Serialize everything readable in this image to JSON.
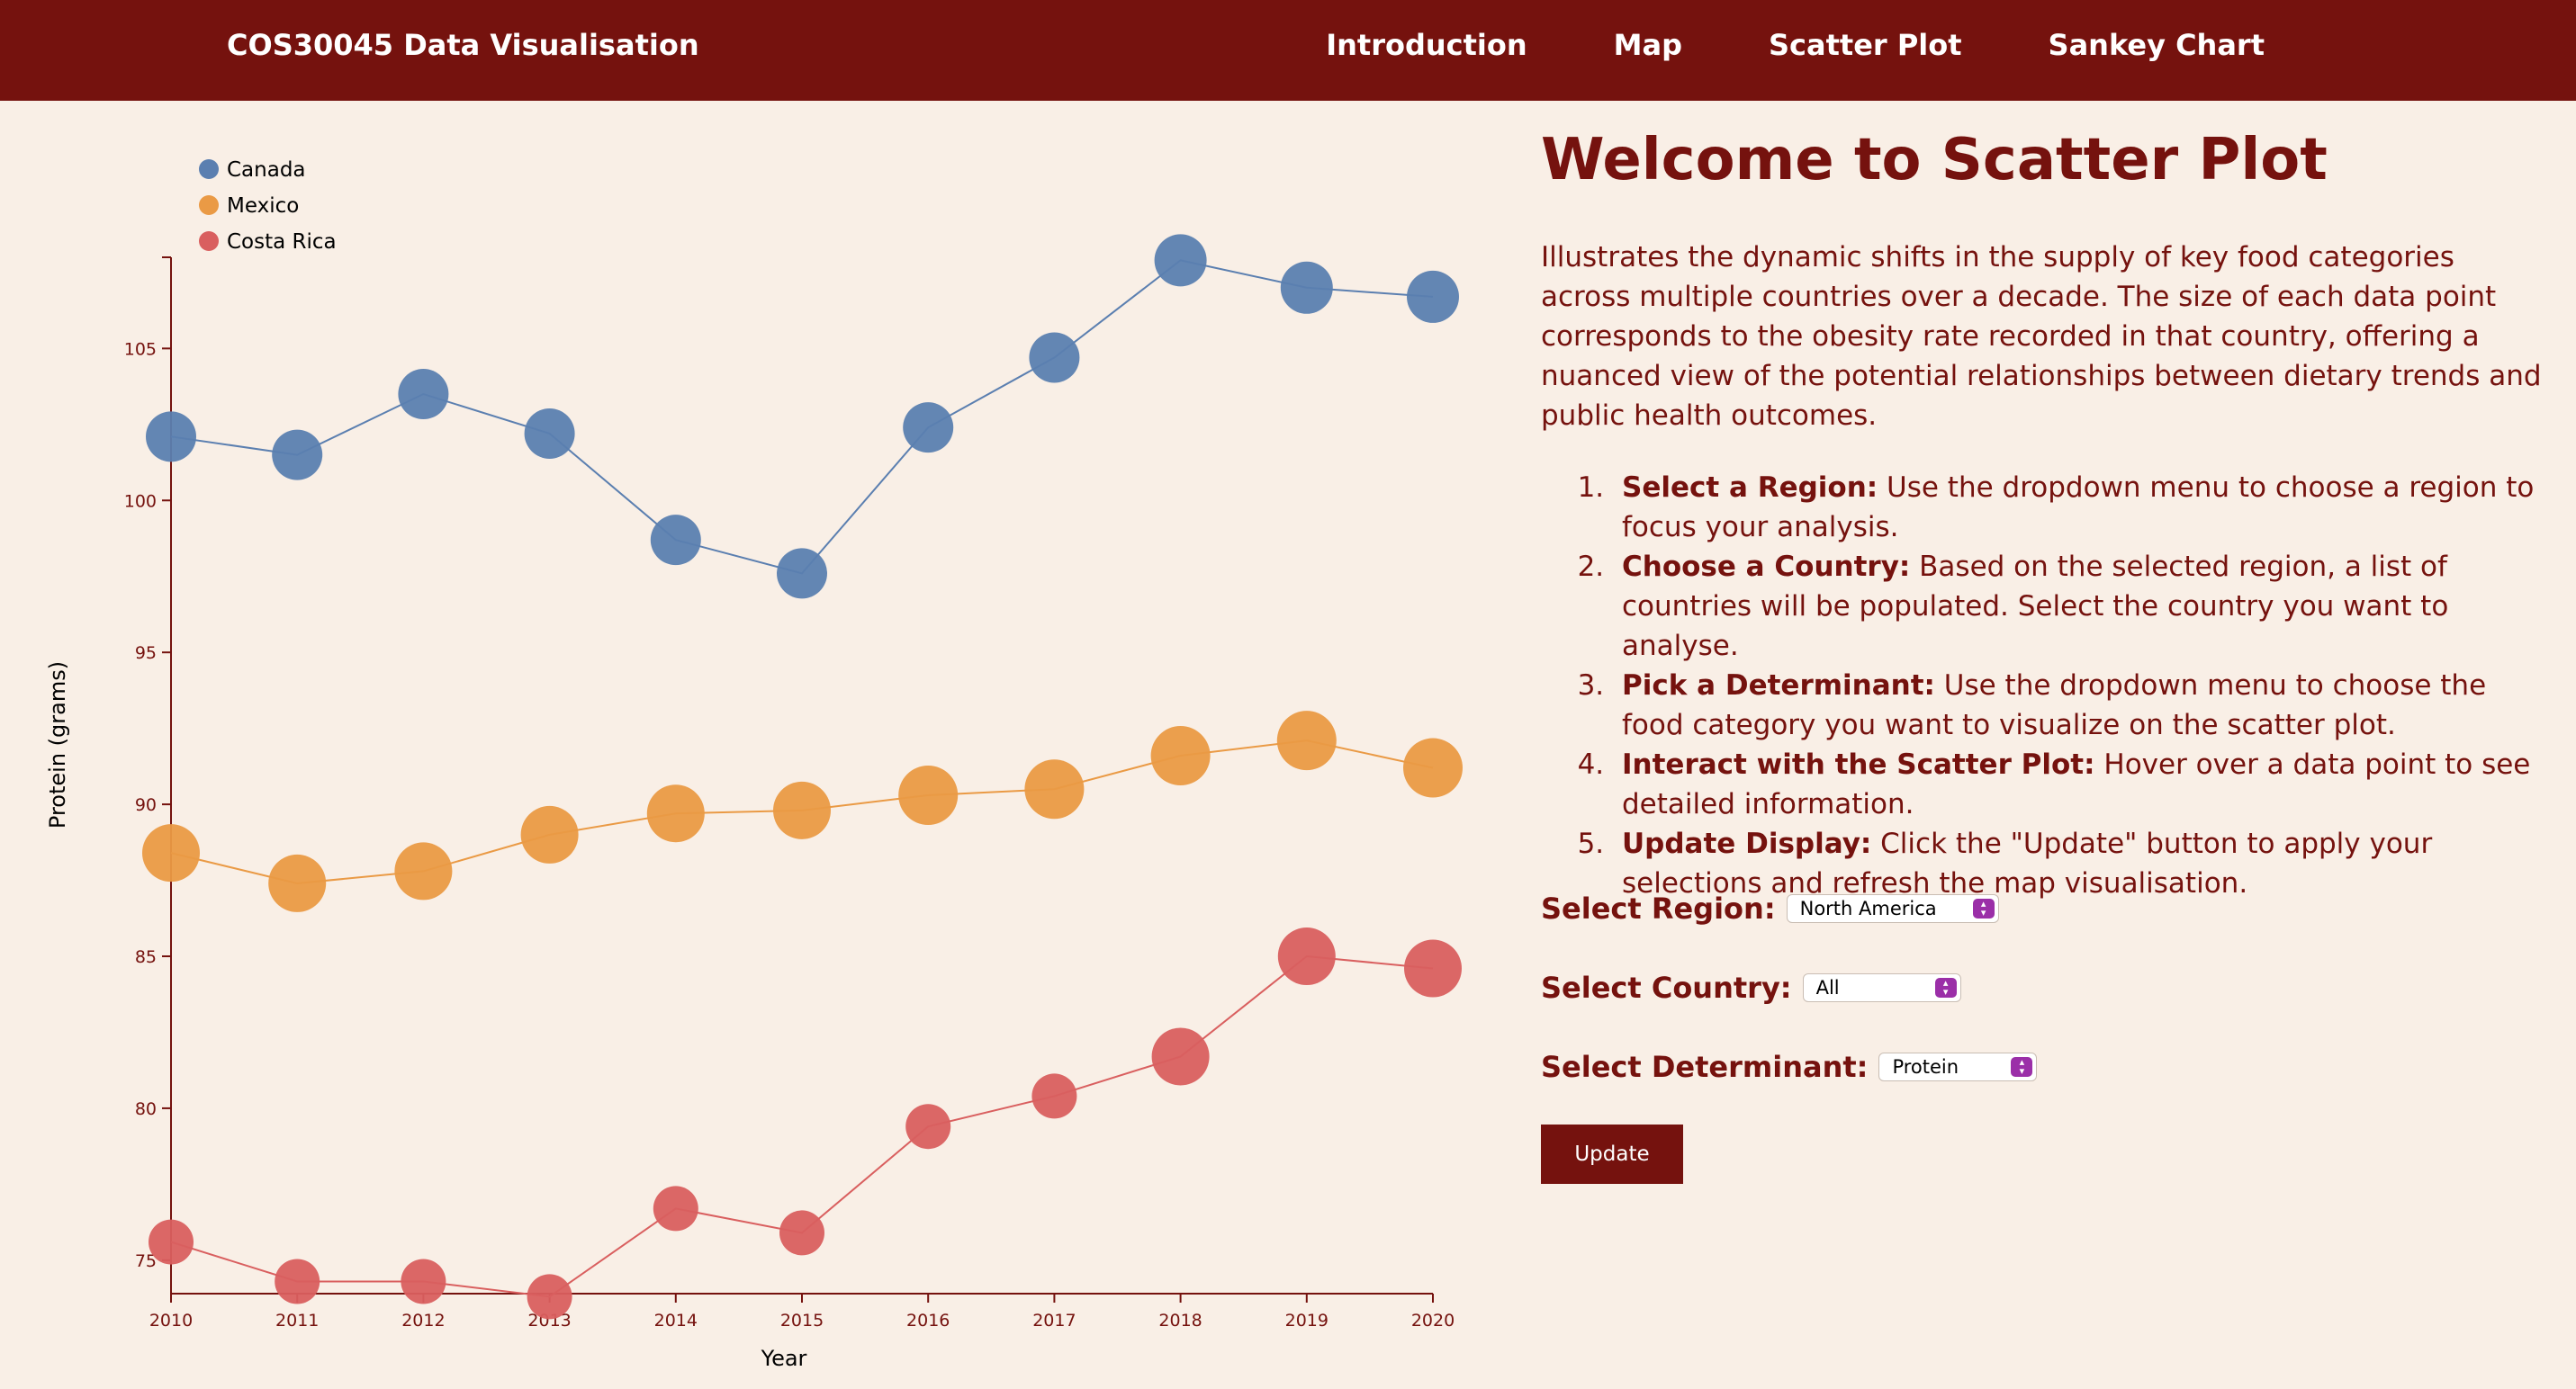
{
  "nav": {
    "brand": "COS30045 Data Visualisation",
    "links": [
      "Introduction",
      "Map",
      "Scatter Plot",
      "Sankey Chart"
    ]
  },
  "main": {
    "title": "Welcome to Scatter Plot",
    "intro": "Illustrates the dynamic shifts in the supply of key food categories across multiple countries over a decade. The size of each data point corresponds to the obesity rate recorded in that country, offering a nuanced view of the potential relationships between dietary trends and public health outcomes.",
    "steps": [
      {
        "bold": "Select a Region:",
        "text": " Use the dropdown menu to choose a region to focus your analysis."
      },
      {
        "bold": "Choose a Country:",
        "text": " Based on the selected region, a list of countries will be populated. Select the country you want to analyse."
      },
      {
        "bold": "Pick a Determinant:",
        "text": " Use the dropdown menu to choose the food category you want to visualize on the scatter plot."
      },
      {
        "bold": "Interact with the Scatter Plot:",
        "text": " Hover over a data point to see detailed information."
      },
      {
        "bold": "Update Display:",
        "text": " Click the \"Update\" button to apply your selections and refresh the map visualisation."
      }
    ]
  },
  "controls": {
    "region_label": "Select Region:",
    "region_value": "North America",
    "country_label": "Select Country:",
    "country_value": "All",
    "determinant_label": "Select Determinant:",
    "determinant_value": "Protein",
    "update_label": "Update"
  },
  "colors": {
    "accent": "#75120e",
    "background": "#f9efe6",
    "Canada": "#5b7fb0",
    "Mexico": "#ea9a45",
    "Costa Rica": "#d95f5f"
  },
  "chart_data": {
    "type": "scatter",
    "xlabel": "Year",
    "ylabel": "Protein (grams)",
    "x": [
      2010,
      2011,
      2012,
      2013,
      2014,
      2015,
      2016,
      2017,
      2018,
      2019,
      2020
    ],
    "xlim": [
      2010,
      2020
    ],
    "ylim": [
      73.9,
      108
    ],
    "yticks": [
      75,
      80,
      85,
      90,
      95,
      100,
      105
    ],
    "grid": false,
    "legend": "top-left",
    "point_size_meaning": "obesity rate",
    "series": [
      {
        "name": "Canada",
        "color": "#5b7fb0",
        "values": [
          102.1,
          101.5,
          103.5,
          102.2,
          98.7,
          97.6,
          102.4,
          104.7,
          107.9,
          107.0,
          106.7
        ],
        "sizes": [
          28,
          28,
          28,
          28,
          28,
          28,
          28,
          28,
          29,
          29,
          29
        ]
      },
      {
        "name": "Mexico",
        "color": "#ea9a45",
        "values": [
          88.4,
          87.4,
          87.8,
          89.0,
          89.7,
          89.8,
          90.3,
          90.5,
          91.6,
          92.1,
          91.2
        ],
        "sizes": [
          32,
          32,
          32,
          32,
          32,
          32,
          33,
          33,
          33,
          33,
          33
        ]
      },
      {
        "name": "Costa Rica",
        "color": "#d95f5f",
        "values": [
          75.6,
          74.3,
          74.3,
          73.8,
          76.7,
          75.9,
          79.4,
          80.4,
          81.7,
          85.0,
          84.6
        ],
        "sizes": [
          25,
          25,
          25,
          25,
          25,
          25,
          25,
          25,
          32,
          32,
          32
        ]
      }
    ]
  }
}
